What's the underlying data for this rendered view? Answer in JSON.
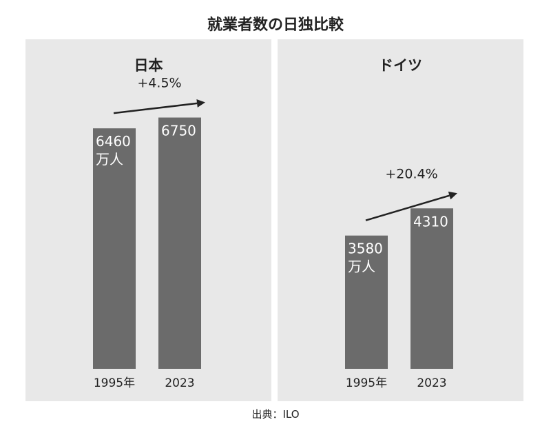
{
  "title": "就業者数の日独比較",
  "source": "出典：ILO",
  "colors": {
    "bar": "#6b6b6b",
    "panel": "#e8e8e8"
  },
  "chart_data": [
    {
      "type": "bar",
      "title": "日本",
      "categories": [
        "1995年",
        "2023"
      ],
      "values": [
        6460,
        6750
      ],
      "data_labels": [
        [
          "6460",
          "万人"
        ],
        [
          "6750"
        ]
      ],
      "growth_label": "+4.5%",
      "ylim": [
        0,
        7000
      ],
      "grid": false
    },
    {
      "type": "bar",
      "title": "ドイツ",
      "categories": [
        "1995年",
        "2023"
      ],
      "values": [
        3580,
        4310
      ],
      "data_labels": [
        [
          "3580",
          "万人"
        ],
        [
          "4310"
        ]
      ],
      "growth_label": "+20.4%",
      "ylim": [
        0,
        7000
      ],
      "grid": false
    }
  ]
}
